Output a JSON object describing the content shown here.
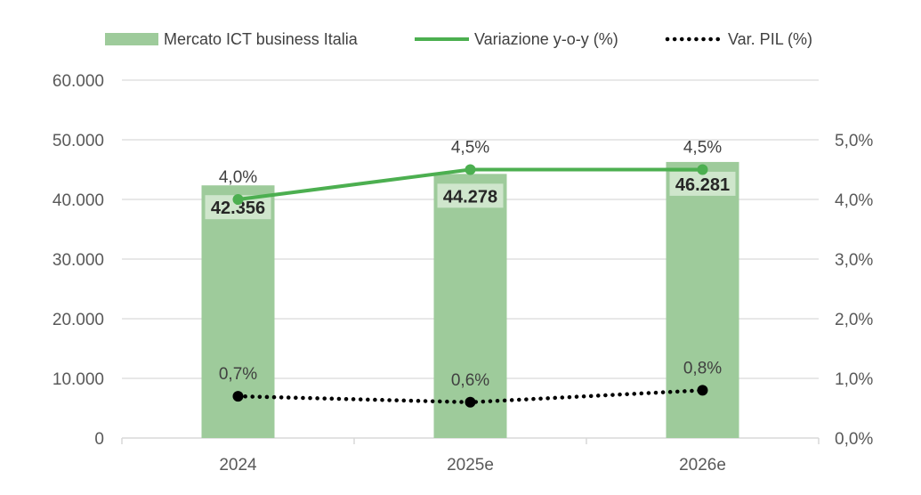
{
  "legend": {
    "items": [
      {
        "label": "Mercato ICT business Italia",
        "kind": "bar",
        "color": "#9ecb9b"
      },
      {
        "label": "Variazione y-o-y (%)",
        "kind": "line",
        "color": "#4caf50"
      },
      {
        "label": "Var. PIL (%)",
        "kind": "dotted",
        "color": "#000000"
      }
    ]
  },
  "chart_data": {
    "type": "bar",
    "categories": [
      "2024",
      "2025e",
      "2026e"
    ],
    "y_left": {
      "range": [
        0,
        60000
      ],
      "ticks": [
        0,
        10000,
        20000,
        30000,
        40000,
        50000,
        60000
      ],
      "tick_labels": [
        "0",
        "10.000",
        "20.000",
        "30.000",
        "40.000",
        "50.000",
        "60.000"
      ]
    },
    "y_right": {
      "range": [
        0,
        6.0
      ],
      "ticks": [
        0,
        1,
        2,
        3,
        4,
        5
      ],
      "tick_labels": [
        "0,0%",
        "1,0%",
        "2,0%",
        "3,0%",
        "4,0%",
        "5,0%"
      ]
    },
    "grid": true,
    "series": [
      {
        "name": "Mercato ICT business Italia",
        "type": "bar",
        "axis": "left",
        "values": [
          42356,
          44278,
          46281
        ],
        "labels": [
          "42.356",
          "44.278",
          "46.281"
        ],
        "color": "#9ecb9b"
      },
      {
        "name": "Variazione y-o-y (%)",
        "type": "line",
        "axis": "right",
        "values": [
          4.0,
          4.5,
          4.5
        ],
        "labels": [
          "4,0%",
          "4,5%",
          "4,5%"
        ],
        "color": "#4caf50"
      },
      {
        "name": "Var. PIL (%)",
        "type": "line-dotted",
        "axis": "right",
        "values": [
          0.7,
          0.6,
          0.8
        ],
        "labels": [
          "0,7%",
          "0,6%",
          "0,8%"
        ],
        "color": "#000000"
      }
    ],
    "legend_position": "top"
  },
  "colors": {
    "bar_label_bg": "#cfe6cc",
    "axis_text": "#595959",
    "grid": "#d9d9d9"
  }
}
